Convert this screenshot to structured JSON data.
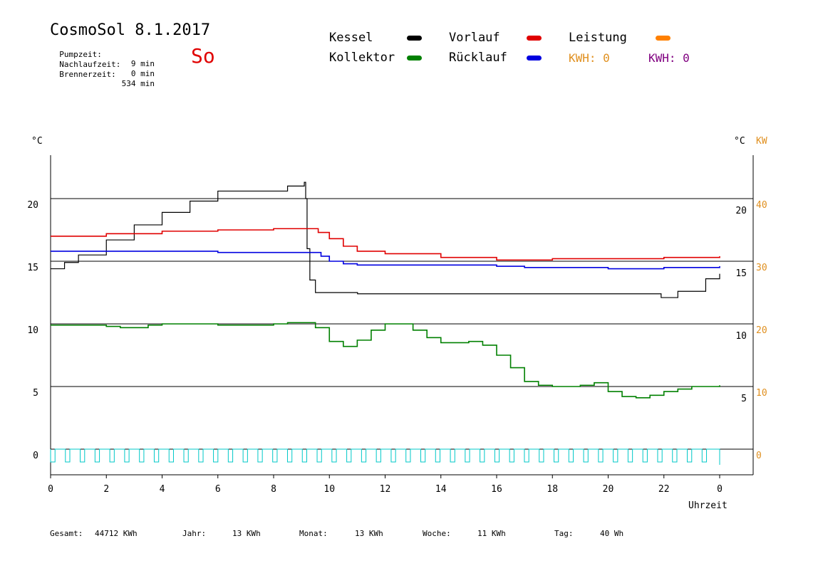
{
  "header": {
    "title": "CosmoSol 8.1.2017",
    "day": "So",
    "stats": [
      {
        "label": "Pumpzeit:",
        "value": "9 min"
      },
      {
        "label": "Nachlaufzeit:",
        "value": "0 min"
      },
      {
        "label": "Brennerzeit:",
        "value": "534 min"
      }
    ]
  },
  "legend": {
    "kessel": {
      "label": "Kessel",
      "color": "#000000"
    },
    "kollektor": {
      "label": "Kollektor",
      "color": "#008000"
    },
    "vorlauf": {
      "label": "Vorlauf",
      "color": "#e00000"
    },
    "ruecklauf": {
      "label": "Rücklauf",
      "color": "#0000e0"
    },
    "leistung": {
      "label": "Leistung",
      "color": "#ff8000"
    },
    "kwh1": "KWH: 0",
    "kwh2": "KWH: 0",
    "kwh1_color": "#e09020",
    "kwh2_color": "#800080"
  },
  "axes": {
    "left_unit": "°C",
    "right_unit_c": "°C",
    "right_unit_kw": "KW",
    "xlabel": "Uhrzeit"
  },
  "footer": {
    "gesamt_label": "Gesamt:",
    "gesamt": "44712 KWh",
    "jahr_label": "Jahr:",
    "jahr": "13 KWh",
    "monat_label": "Monat:",
    "monat": "13 KWh",
    "woche_label": "Woche:",
    "woche": "11 KWh",
    "tag_label": "Tag:",
    "tag": "40 Wh"
  },
  "chart_data": {
    "type": "line",
    "title": "CosmoSol 8.1.2017",
    "xlabel": "Uhrzeit",
    "ylabel": "°C",
    "x_ticks": [
      "0",
      "2",
      "4",
      "6",
      "8",
      "10",
      "12",
      "14",
      "16",
      "18",
      "20",
      "22",
      "0"
    ],
    "y_ticks_left": [
      0,
      5,
      10,
      15,
      20
    ],
    "y_ticks_right_c": [
      5,
      10,
      15,
      20
    ],
    "y_ticks_right_kw": [
      0,
      10,
      20,
      30,
      40
    ],
    "xlim": [
      0,
      24
    ],
    "ylim": [
      -1.5,
      24
    ],
    "grid": "horizontal",
    "colors": {
      "kessel": "#000000",
      "kollektor": "#008000",
      "vorlauf": "#e00000",
      "ruecklauf": "#0000e0",
      "pumpe": "#00c8c8"
    },
    "series": [
      {
        "name": "Kessel",
        "key": "kessel",
        "points": [
          [
            0,
            14.4
          ],
          [
            0.5,
            14.9
          ],
          [
            1,
            15.5
          ],
          [
            2,
            16.7
          ],
          [
            3,
            17.9
          ],
          [
            4,
            18.9
          ],
          [
            5,
            19.8
          ],
          [
            6,
            20.6
          ],
          [
            8,
            20.6
          ],
          [
            8.5,
            21
          ],
          [
            9.1,
            21.3
          ],
          [
            9.15,
            20
          ],
          [
            9.2,
            16
          ],
          [
            9.3,
            13.5
          ],
          [
            9.5,
            12.5
          ],
          [
            11,
            12.5
          ],
          [
            11.01,
            12.4
          ],
          [
            21.8,
            12.4
          ],
          [
            21.9,
            12.1
          ],
          [
            22.5,
            12.6
          ],
          [
            23.5,
            13.6
          ],
          [
            24,
            14
          ]
        ]
      },
      {
        "name": "Vorlauf",
        "key": "vorlauf",
        "points": [
          [
            0,
            17
          ],
          [
            2,
            17.2
          ],
          [
            4,
            17.4
          ],
          [
            6,
            17.5
          ],
          [
            8,
            17.6
          ],
          [
            9.2,
            17.6
          ],
          [
            9.6,
            17.3
          ],
          [
            10,
            16.8
          ],
          [
            10.5,
            16.2
          ],
          [
            11,
            15.8
          ],
          [
            12,
            15.6
          ],
          [
            14,
            15.3
          ],
          [
            16,
            15.1
          ],
          [
            17,
            15.1
          ],
          [
            18,
            15.2
          ],
          [
            20,
            15.2
          ],
          [
            22,
            15.3
          ],
          [
            24,
            15.4
          ]
        ]
      },
      {
        "name": "Rücklauf",
        "key": "ruecklauf",
        "points": [
          [
            0,
            15.8
          ],
          [
            4,
            15.8
          ],
          [
            6,
            15.7
          ],
          [
            8,
            15.7
          ],
          [
            9.2,
            15.7
          ],
          [
            9.7,
            15.4
          ],
          [
            10,
            15
          ],
          [
            10.5,
            14.8
          ],
          [
            11,
            14.7
          ],
          [
            14,
            14.7
          ],
          [
            16,
            14.6
          ],
          [
            17,
            14.5
          ],
          [
            18,
            14.5
          ],
          [
            20,
            14.4
          ],
          [
            22,
            14.5
          ],
          [
            24,
            14.6
          ]
        ]
      },
      {
        "name": "Kollektor",
        "key": "kollektor",
        "points": [
          [
            0,
            9.9
          ],
          [
            1,
            9.9
          ],
          [
            2,
            9.8
          ],
          [
            2.5,
            9.7
          ],
          [
            3,
            9.7
          ],
          [
            3.5,
            9.9
          ],
          [
            4,
            10
          ],
          [
            5,
            10
          ],
          [
            6,
            9.9
          ],
          [
            7,
            9.9
          ],
          [
            8,
            10
          ],
          [
            8.5,
            10.1
          ],
          [
            9,
            10.1
          ],
          [
            9.5,
            9.7
          ],
          [
            10,
            8.6
          ],
          [
            10.5,
            8.2
          ],
          [
            11,
            8.7
          ],
          [
            11.5,
            9.5
          ],
          [
            12,
            10
          ],
          [
            12.5,
            10
          ],
          [
            13,
            9.5
          ],
          [
            13.5,
            8.9
          ],
          [
            14,
            8.5
          ],
          [
            15,
            8.6
          ],
          [
            15.5,
            8.3
          ],
          [
            16,
            7.5
          ],
          [
            16.5,
            6.5
          ],
          [
            17,
            5.4
          ],
          [
            17.5,
            5.1
          ],
          [
            18,
            5
          ],
          [
            19,
            5.1
          ],
          [
            19.5,
            5.3
          ],
          [
            20,
            4.6
          ],
          [
            20.5,
            4.2
          ],
          [
            21,
            4.1
          ],
          [
            21.5,
            4.3
          ],
          [
            22,
            4.6
          ],
          [
            22.5,
            4.8
          ],
          [
            23,
            5
          ],
          [
            24,
            5.1
          ]
        ]
      }
    ],
    "pump_cycles": 45
  }
}
